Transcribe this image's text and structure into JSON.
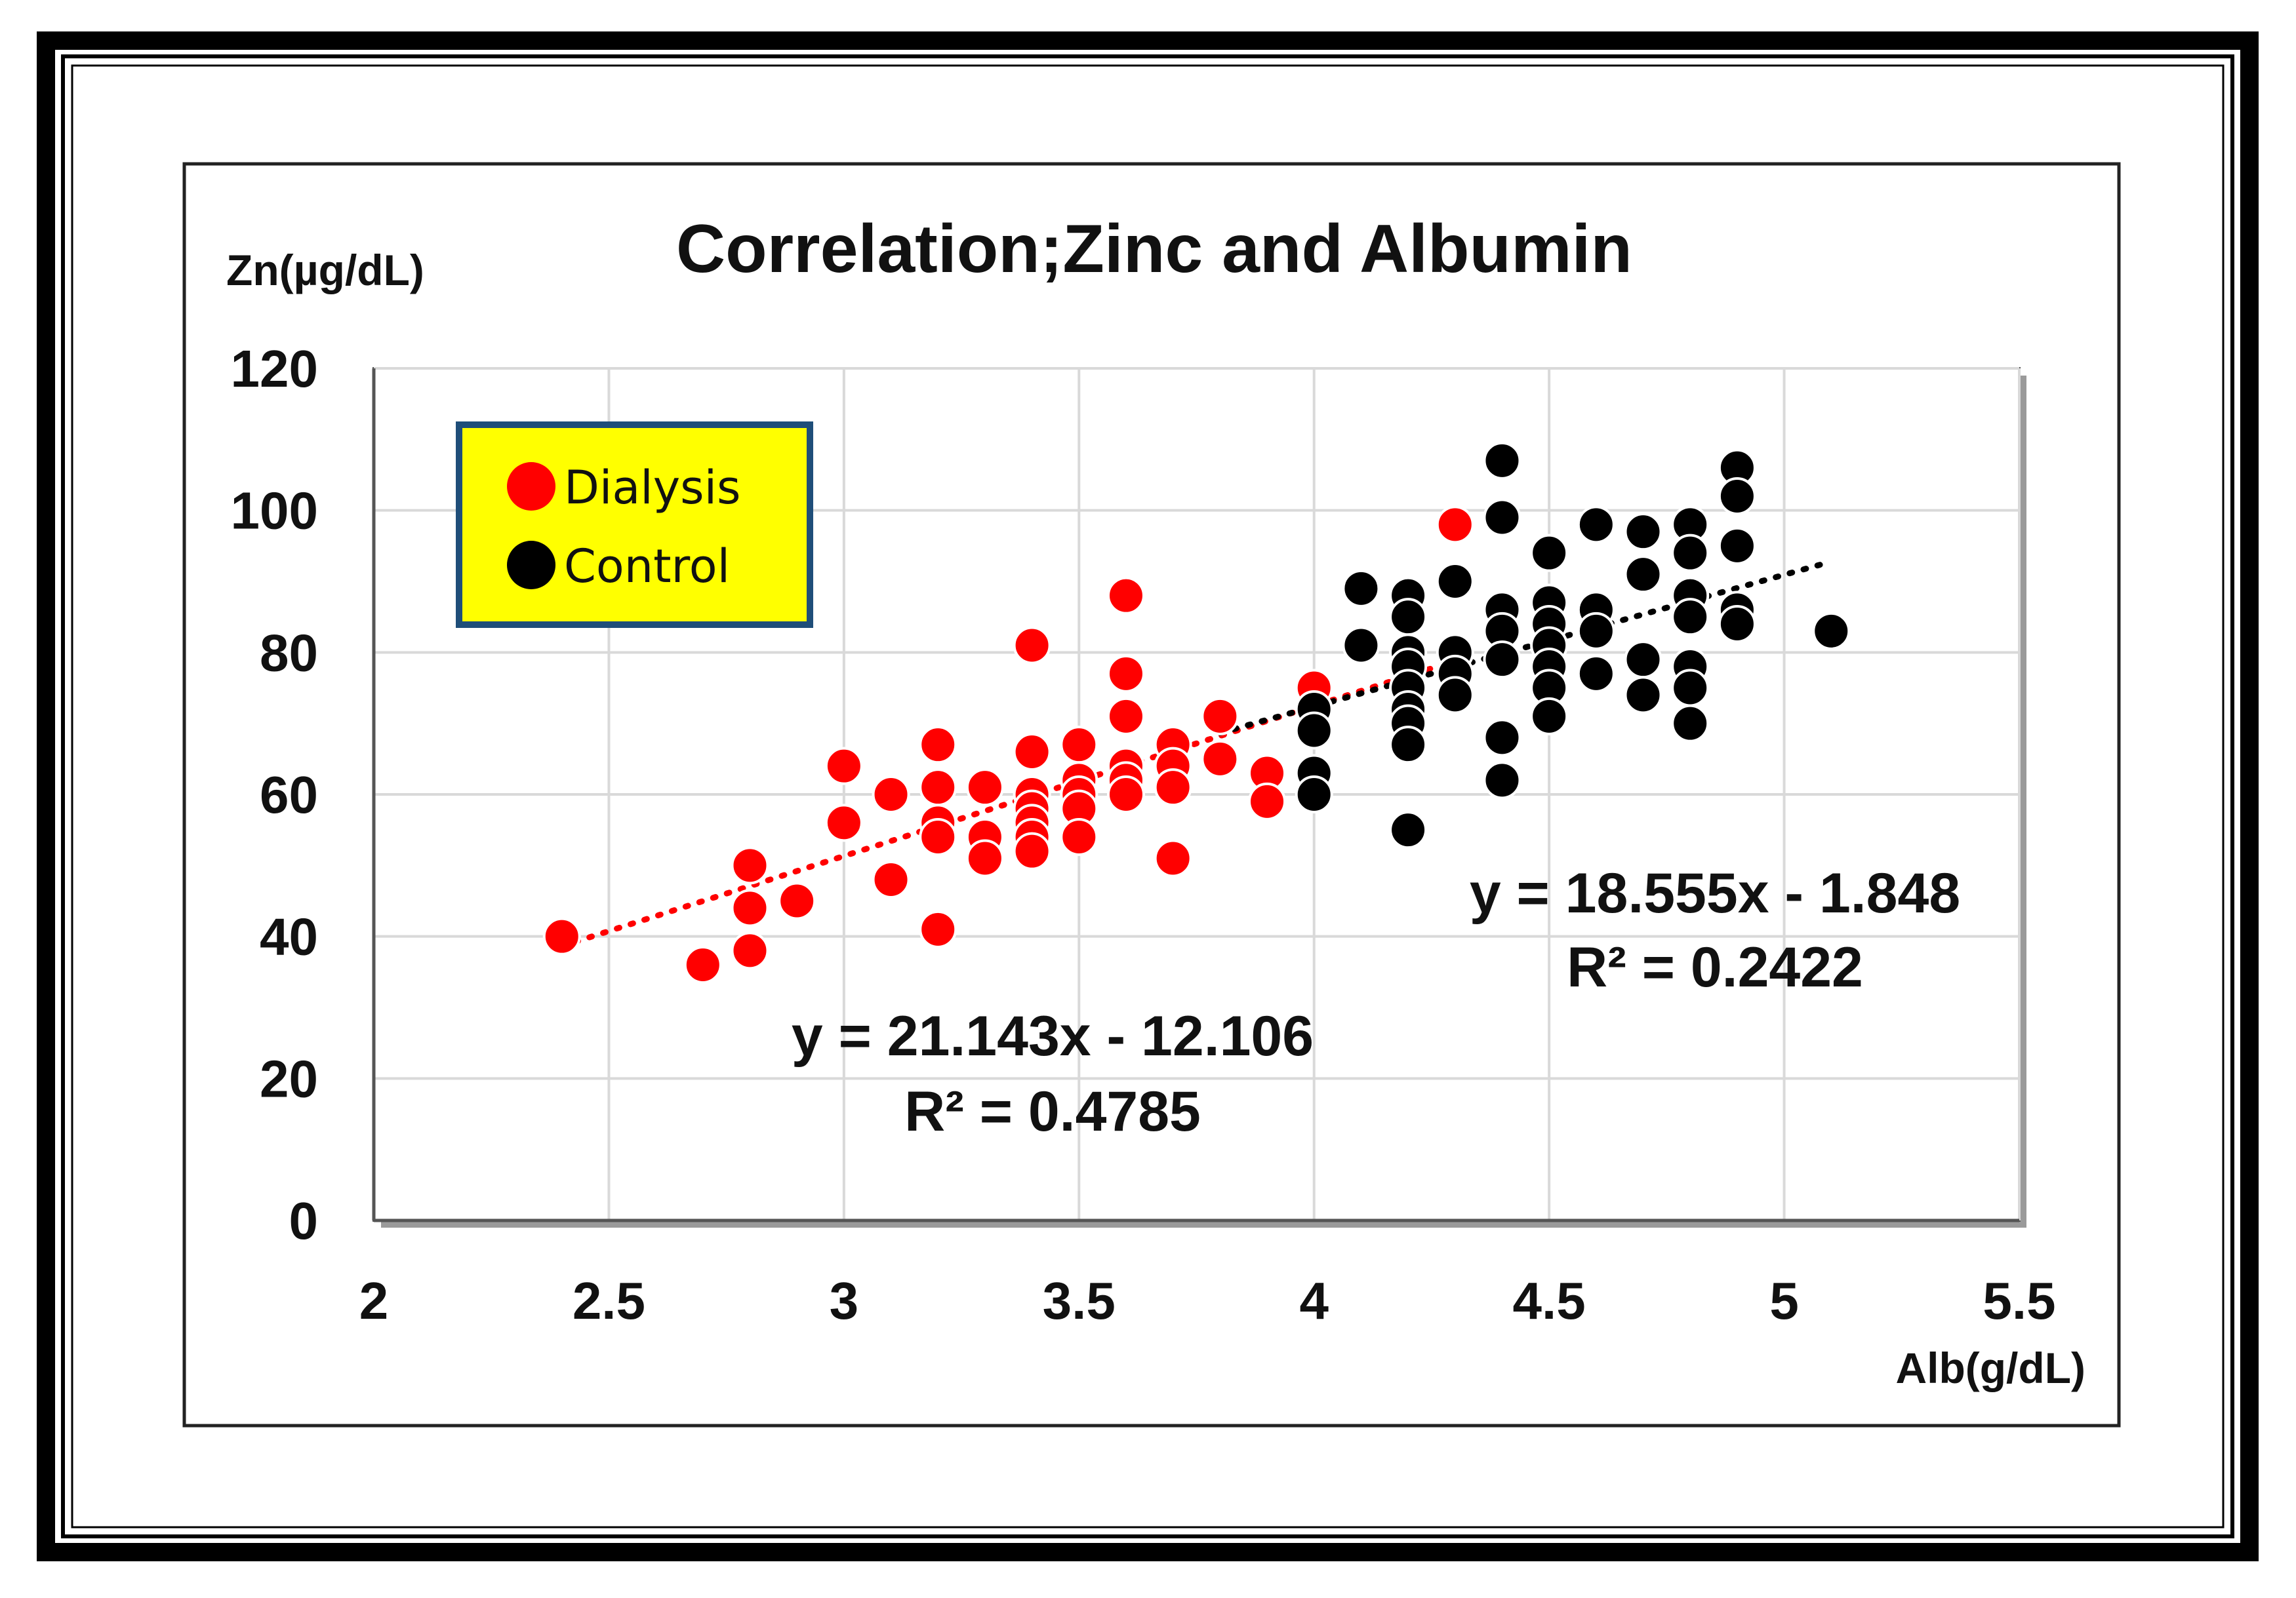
{
  "colors": {
    "dialysis": "#ff0000",
    "control": "#000000",
    "legend_bg": "#ffff00",
    "legend_border": "#1f4e79",
    "plot_bg": "#ffffff",
    "grid": "#d9d9d9"
  },
  "chart_data": {
    "type": "scatter",
    "title": "Correlation;Zinc and Albumin",
    "xlabel": "Alb(g/dL)",
    "ylabel": "Zn(µg/dL)",
    "xlim": [
      2,
      5.5
    ],
    "ylim": [
      0,
      120
    ],
    "x_ticks": [
      2,
      2.5,
      3,
      3.5,
      4,
      4.5,
      5,
      5.5
    ],
    "y_ticks": [
      0,
      20,
      40,
      60,
      80,
      100,
      120
    ],
    "x_tick_labels": [
      "2",
      "2.5",
      "3",
      "3.5",
      "4",
      "4.5",
      "5",
      "5.5"
    ],
    "y_tick_labels": [
      "0",
      "20",
      "40",
      "60",
      "80",
      "100",
      "120"
    ],
    "grid": true,
    "legend_position": "top-left",
    "series": [
      {
        "name": "Dialysis",
        "color": "#ff0000",
        "points": [
          [
            2.4,
            40
          ],
          [
            2.7,
            36
          ],
          [
            2.8,
            50
          ],
          [
            2.8,
            44
          ],
          [
            2.8,
            38
          ],
          [
            2.9,
            45
          ],
          [
            3.0,
            64
          ],
          [
            3.0,
            56
          ],
          [
            3.1,
            60
          ],
          [
            3.1,
            48
          ],
          [
            3.2,
            67
          ],
          [
            3.2,
            61
          ],
          [
            3.2,
            56
          ],
          [
            3.2,
            54
          ],
          [
            3.2,
            41
          ],
          [
            3.3,
            61
          ],
          [
            3.3,
            54
          ],
          [
            3.3,
            51
          ],
          [
            3.4,
            81
          ],
          [
            3.4,
            66
          ],
          [
            3.4,
            60
          ],
          [
            3.4,
            58
          ],
          [
            3.4,
            56
          ],
          [
            3.4,
            54
          ],
          [
            3.4,
            52
          ],
          [
            3.5,
            67
          ],
          [
            3.5,
            62
          ],
          [
            3.5,
            60
          ],
          [
            3.5,
            58
          ],
          [
            3.5,
            54
          ],
          [
            3.6,
            88
          ],
          [
            3.6,
            77
          ],
          [
            3.6,
            71
          ],
          [
            3.6,
            64
          ],
          [
            3.6,
            62
          ],
          [
            3.6,
            60
          ],
          [
            3.7,
            67
          ],
          [
            3.7,
            64
          ],
          [
            3.7,
            61
          ],
          [
            3.7,
            51
          ],
          [
            3.8,
            71
          ],
          [
            3.8,
            65
          ],
          [
            3.9,
            63
          ],
          [
            3.9,
            59
          ],
          [
            4.0,
            75
          ],
          [
            4.3,
            98
          ]
        ],
        "trendline": {
          "slope": 21.143,
          "intercept": -12.106,
          "x_range": [
            2.4,
            4.3
          ],
          "equation": "y = 21.143x - 12.106",
          "r_squared": "R² = 0.4785"
        }
      },
      {
        "name": "Control",
        "color": "#000000",
        "points": [
          [
            4.0,
            72
          ],
          [
            4.0,
            69
          ],
          [
            4.0,
            63
          ],
          [
            4.0,
            60
          ],
          [
            4.1,
            89
          ],
          [
            4.1,
            81
          ],
          [
            4.2,
            88
          ],
          [
            4.2,
            85
          ],
          [
            4.2,
            80
          ],
          [
            4.2,
            78
          ],
          [
            4.2,
            75
          ],
          [
            4.2,
            72
          ],
          [
            4.2,
            70
          ],
          [
            4.2,
            67
          ],
          [
            4.2,
            55
          ],
          [
            4.3,
            90
          ],
          [
            4.3,
            80
          ],
          [
            4.3,
            77
          ],
          [
            4.3,
            74
          ],
          [
            4.4,
            107
          ],
          [
            4.4,
            99
          ],
          [
            4.4,
            86
          ],
          [
            4.4,
            83
          ],
          [
            4.4,
            79
          ],
          [
            4.4,
            68
          ],
          [
            4.4,
            62
          ],
          [
            4.5,
            94
          ],
          [
            4.5,
            87
          ],
          [
            4.5,
            84
          ],
          [
            4.5,
            81
          ],
          [
            4.5,
            78
          ],
          [
            4.5,
            75
          ],
          [
            4.5,
            71
          ],
          [
            4.6,
            98
          ],
          [
            4.6,
            86
          ],
          [
            4.6,
            83
          ],
          [
            4.6,
            77
          ],
          [
            4.7,
            97
          ],
          [
            4.7,
            91
          ],
          [
            4.7,
            79
          ],
          [
            4.7,
            74
          ],
          [
            4.8,
            98
          ],
          [
            4.8,
            94
          ],
          [
            4.8,
            88
          ],
          [
            4.8,
            85
          ],
          [
            4.8,
            78
          ],
          [
            4.8,
            75
          ],
          [
            4.8,
            70
          ],
          [
            4.9,
            106
          ],
          [
            4.9,
            102
          ],
          [
            4.9,
            95
          ],
          [
            4.9,
            86
          ],
          [
            4.9,
            84
          ],
          [
            5.1,
            83
          ]
        ],
        "trendline": {
          "slope": 18.555,
          "intercept": -1.848,
          "x_range": [
            3.8,
            5.1
          ],
          "equation": "y = 18.555x - 1.848",
          "r_squared": "R² = 0.2422"
        }
      }
    ]
  }
}
